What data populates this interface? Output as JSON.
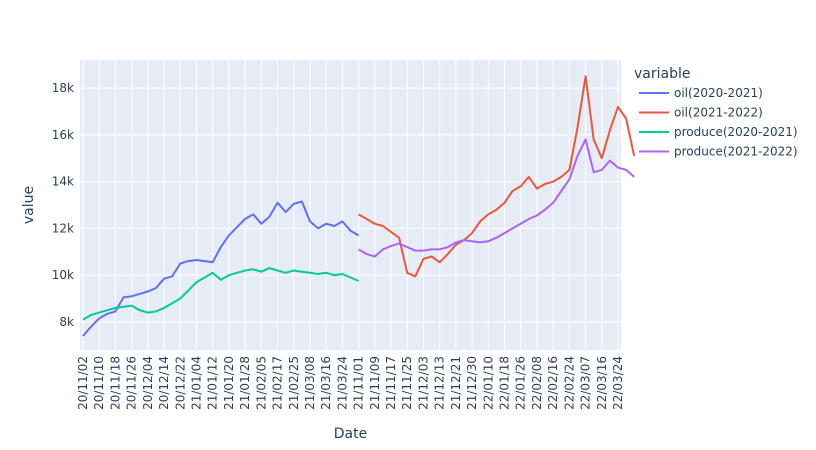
{
  "chart_data": {
    "type": "line",
    "title": "",
    "xlabel": "Date",
    "ylabel": "value",
    "legend_title": "variable",
    "legend_position": "right",
    "grid": true,
    "ylim": [
      6800,
      19200
    ],
    "y_ticks": [
      {
        "value": 8000,
        "label": "8k"
      },
      {
        "value": 10000,
        "label": "10k"
      },
      {
        "value": 12000,
        "label": "12k"
      },
      {
        "value": 14000,
        "label": "14k"
      },
      {
        "value": 16000,
        "label": "16k"
      },
      {
        "value": 18000,
        "label": "18k"
      }
    ],
    "categories": [
      "20/11/02",
      "20/11/10",
      "20/11/18",
      "20/11/26",
      "20/12/04",
      "20/12/14",
      "20/12/22",
      "21/01/04",
      "21/01/12",
      "21/01/20",
      "21/01/28",
      "21/02/05",
      "21/02/17",
      "21/02/25",
      "21/03/08",
      "21/03/16",
      "21/03/24",
      "21/11/01",
      "21/11/09",
      "21/11/17",
      "21/11/25",
      "21/12/03",
      "21/12/13",
      "21/12/21",
      "21/12/30",
      "22/01/10",
      "22/01/18",
      "22/01/26",
      "22/02/08",
      "22/02/16",
      "22/02/24",
      "22/03/07",
      "22/03/16",
      "22/03/24"
    ],
    "series": [
      {
        "name": "oil(2020-2021)",
        "color": "#636efa",
        "x": [
          0,
          0.5,
          1,
          1.5,
          2,
          2.5,
          3,
          3.5,
          4,
          4.5,
          5,
          5.5,
          6,
          6.5,
          7,
          7.5,
          8,
          8.5,
          9,
          9.5,
          10,
          10.5,
          11,
          11.5,
          12,
          12.5,
          13,
          13.5,
          14,
          14.5,
          15,
          15.5,
          16,
          16.5,
          17
        ],
        "values": [
          7400,
          7800,
          8150,
          8350,
          8450,
          9050,
          9100,
          9200,
          9300,
          9450,
          9850,
          9950,
          10500,
          10600,
          10650,
          10600,
          10550,
          11200,
          11700,
          12050,
          12400,
          12600,
          12200,
          12500,
          13100,
          12700,
          13050,
          13150,
          12300,
          12000,
          12200,
          12100,
          12300,
          11900,
          11700
        ]
      },
      {
        "name": "oil(2021-2022)",
        "color": "#ef553b",
        "x": [
          17,
          17.5,
          18,
          18.5,
          19,
          19.5,
          20,
          20.5,
          21,
          21.5,
          22,
          22.5,
          23,
          23.5,
          24,
          24.5,
          25,
          25.5,
          26,
          26.5,
          27,
          27.5,
          28,
          28.5,
          29,
          29.5,
          30,
          30.5,
          31,
          31.5,
          32,
          32.5,
          33,
          33.5,
          34
        ],
        "values": [
          12600,
          12400,
          12200,
          12100,
          11850,
          11600,
          10100,
          9950,
          10700,
          10800,
          10550,
          10900,
          11300,
          11500,
          11800,
          12300,
          12600,
          12800,
          13100,
          13600,
          13800,
          14200,
          13700,
          13900,
          14000,
          14200,
          14500,
          16300,
          18500,
          15800,
          15000,
          16200,
          17200,
          16700,
          15100
        ]
      },
      {
        "name": "produce(2020-2021)",
        "color": "#00cc96",
        "x": [
          0,
          0.5,
          1,
          1.5,
          2,
          2.5,
          3,
          3.5,
          4,
          4.5,
          5,
          5.5,
          6,
          6.5,
          7,
          7.5,
          8,
          8.5,
          9,
          9.5,
          10,
          10.5,
          11,
          11.5,
          12,
          12.5,
          13,
          13.5,
          14,
          14.5,
          15,
          15.5,
          16,
          16.5,
          17
        ],
        "values": [
          8100,
          8300,
          8400,
          8500,
          8600,
          8650,
          8700,
          8500,
          8400,
          8450,
          8600,
          8800,
          9000,
          9350,
          9700,
          9900,
          10100,
          9800,
          10000,
          10100,
          10200,
          10250,
          10150,
          10300,
          10200,
          10100,
          10200,
          10150,
          10100,
          10050,
          10100,
          10000,
          10050,
          9900,
          9750
        ]
      },
      {
        "name": "produce(2021-2022)",
        "color": "#ab63fa",
        "x": [
          17,
          17.5,
          18,
          18.5,
          19,
          19.5,
          20,
          20.5,
          21,
          21.5,
          22,
          22.5,
          23,
          23.5,
          24,
          24.5,
          25,
          25.5,
          26,
          26.5,
          27,
          27.5,
          28,
          28.5,
          29,
          29.5,
          30,
          30.5,
          31,
          31.5,
          32,
          32.5,
          33,
          33.5,
          34
        ],
        "values": [
          11100,
          10900,
          10800,
          11100,
          11250,
          11350,
          11200,
          11050,
          11050,
          11100,
          11100,
          11200,
          11400,
          11500,
          11450,
          11400,
          11450,
          11600,
          11800,
          12000,
          12200,
          12400,
          12550,
          12800,
          13100,
          13600,
          14100,
          15100,
          15800,
          14400,
          14500,
          14900,
          14600,
          14500,
          14200
        ]
      }
    ]
  }
}
